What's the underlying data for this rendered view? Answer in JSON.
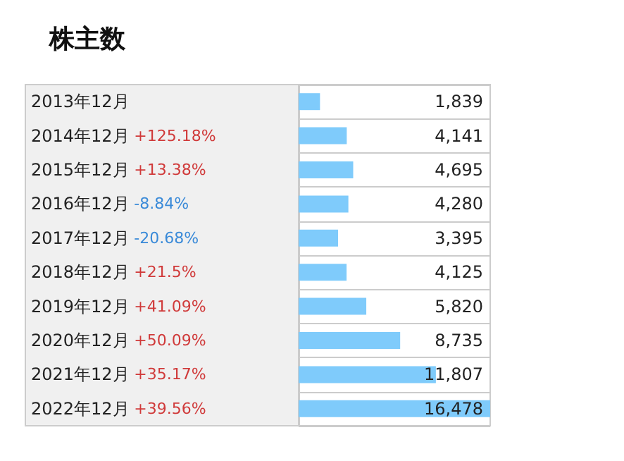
{
  "chart_data": {
    "type": "bar",
    "orientation": "horizontal",
    "title": "株主数",
    "categories": [
      "2013年12月",
      "2014年12月 +125.18%",
      "2015年12月 +13.38%",
      "2016年12月 -8.84%",
      "2017年12月 -20.68%",
      "2018年12月 +21.5%",
      "2019年12月 +41.09%",
      "2020年12月 +50.09%",
      "2021年12月 +35.17%",
      "2022年12月 +39.56%"
    ],
    "values": [
      1839,
      4141,
      4695,
      4280,
      3395,
      4125,
      5820,
      8735,
      11807,
      16478
    ],
    "value_labels": [
      "1,839",
      "4,141",
      "4,695",
      "4,280",
      "3,395",
      "4,125",
      "5,820",
      "8,735",
      "11,807",
      "16,478"
    ],
    "color": "#7fcbfb",
    "grid": "y"
  }
}
